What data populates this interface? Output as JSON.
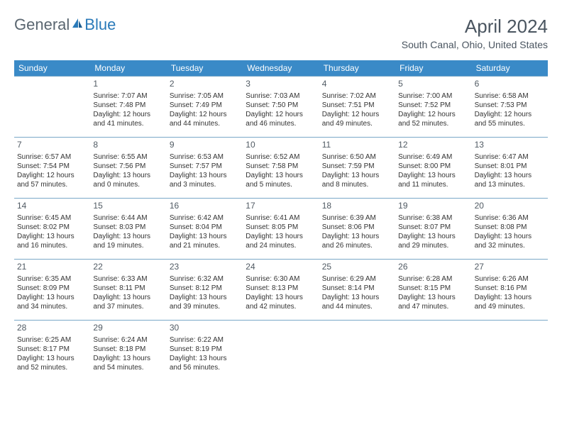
{
  "logo": {
    "text1": "General",
    "text2": "Blue"
  },
  "title": "April 2024",
  "location": "South Canal, Ohio, United States",
  "colors": {
    "header_bg": "#3a8ac7",
    "border": "#7aa8c8",
    "text_muted": "#4a5560"
  },
  "dayNames": [
    "Sunday",
    "Monday",
    "Tuesday",
    "Wednesday",
    "Thursday",
    "Friday",
    "Saturday"
  ],
  "startWeekday": 1,
  "days": [
    {
      "n": "1",
      "sr": "7:07 AM",
      "ss": "7:48 PM",
      "dl": "12 hours and 41 minutes."
    },
    {
      "n": "2",
      "sr": "7:05 AM",
      "ss": "7:49 PM",
      "dl": "12 hours and 44 minutes."
    },
    {
      "n": "3",
      "sr": "7:03 AM",
      "ss": "7:50 PM",
      "dl": "12 hours and 46 minutes."
    },
    {
      "n": "4",
      "sr": "7:02 AM",
      "ss": "7:51 PM",
      "dl": "12 hours and 49 minutes."
    },
    {
      "n": "5",
      "sr": "7:00 AM",
      "ss": "7:52 PM",
      "dl": "12 hours and 52 minutes."
    },
    {
      "n": "6",
      "sr": "6:58 AM",
      "ss": "7:53 PM",
      "dl": "12 hours and 55 minutes."
    },
    {
      "n": "7",
      "sr": "6:57 AM",
      "ss": "7:54 PM",
      "dl": "12 hours and 57 minutes."
    },
    {
      "n": "8",
      "sr": "6:55 AM",
      "ss": "7:56 PM",
      "dl": "13 hours and 0 minutes."
    },
    {
      "n": "9",
      "sr": "6:53 AM",
      "ss": "7:57 PM",
      "dl": "13 hours and 3 minutes."
    },
    {
      "n": "10",
      "sr": "6:52 AM",
      "ss": "7:58 PM",
      "dl": "13 hours and 5 minutes."
    },
    {
      "n": "11",
      "sr": "6:50 AM",
      "ss": "7:59 PM",
      "dl": "13 hours and 8 minutes."
    },
    {
      "n": "12",
      "sr": "6:49 AM",
      "ss": "8:00 PM",
      "dl": "13 hours and 11 minutes."
    },
    {
      "n": "13",
      "sr": "6:47 AM",
      "ss": "8:01 PM",
      "dl": "13 hours and 13 minutes."
    },
    {
      "n": "14",
      "sr": "6:45 AM",
      "ss": "8:02 PM",
      "dl": "13 hours and 16 minutes."
    },
    {
      "n": "15",
      "sr": "6:44 AM",
      "ss": "8:03 PM",
      "dl": "13 hours and 19 minutes."
    },
    {
      "n": "16",
      "sr": "6:42 AM",
      "ss": "8:04 PM",
      "dl": "13 hours and 21 minutes."
    },
    {
      "n": "17",
      "sr": "6:41 AM",
      "ss": "8:05 PM",
      "dl": "13 hours and 24 minutes."
    },
    {
      "n": "18",
      "sr": "6:39 AM",
      "ss": "8:06 PM",
      "dl": "13 hours and 26 minutes."
    },
    {
      "n": "19",
      "sr": "6:38 AM",
      "ss": "8:07 PM",
      "dl": "13 hours and 29 minutes."
    },
    {
      "n": "20",
      "sr": "6:36 AM",
      "ss": "8:08 PM",
      "dl": "13 hours and 32 minutes."
    },
    {
      "n": "21",
      "sr": "6:35 AM",
      "ss": "8:09 PM",
      "dl": "13 hours and 34 minutes."
    },
    {
      "n": "22",
      "sr": "6:33 AM",
      "ss": "8:11 PM",
      "dl": "13 hours and 37 minutes."
    },
    {
      "n": "23",
      "sr": "6:32 AM",
      "ss": "8:12 PM",
      "dl": "13 hours and 39 minutes."
    },
    {
      "n": "24",
      "sr": "6:30 AM",
      "ss": "8:13 PM",
      "dl": "13 hours and 42 minutes."
    },
    {
      "n": "25",
      "sr": "6:29 AM",
      "ss": "8:14 PM",
      "dl": "13 hours and 44 minutes."
    },
    {
      "n": "26",
      "sr": "6:28 AM",
      "ss": "8:15 PM",
      "dl": "13 hours and 47 minutes."
    },
    {
      "n": "27",
      "sr": "6:26 AM",
      "ss": "8:16 PM",
      "dl": "13 hours and 49 minutes."
    },
    {
      "n": "28",
      "sr": "6:25 AM",
      "ss": "8:17 PM",
      "dl": "13 hours and 52 minutes."
    },
    {
      "n": "29",
      "sr": "6:24 AM",
      "ss": "8:18 PM",
      "dl": "13 hours and 54 minutes."
    },
    {
      "n": "30",
      "sr": "6:22 AM",
      "ss": "8:19 PM",
      "dl": "13 hours and 56 minutes."
    }
  ],
  "labels": {
    "sunrise": "Sunrise:",
    "sunset": "Sunset:",
    "daylight": "Daylight:"
  }
}
